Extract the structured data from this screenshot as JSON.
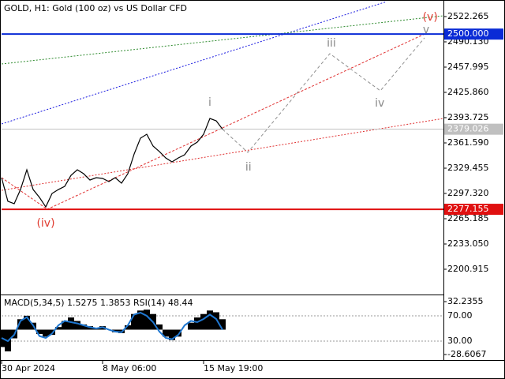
{
  "chart_data": [
    {
      "type": "line",
      "title": "GOLD, H1:  Gold (100 oz) vs US Dollar CFD",
      "categories": [
        "30 Apr 2024",
        null,
        null,
        null,
        null,
        null,
        null,
        null,
        null,
        null,
        null,
        null,
        null,
        null,
        null,
        null,
        "8 May 06:00",
        null,
        null,
        null,
        null,
        null,
        null,
        null,
        null,
        null,
        null,
        null,
        null,
        null,
        null,
        null,
        "15 May 19:00",
        null,
        null,
        null
      ],
      "values": [
        2317.4,
        2287.3,
        2284.3,
        2302.3,
        2327.4,
        2302.3,
        2292.3,
        2280.2,
        2297.3,
        2302.3,
        2306.3,
        2320.4,
        2327.4,
        2322.4,
        2314.4,
        2317.4,
        2316.4,
        2312.4,
        2317.4,
        2310.4,
        2322.4,
        2347.5,
        2367.6,
        2372.6,
        2357.6,
        2350.6,
        2342.5,
        2337.5,
        2342.5,
        2346.5,
        2357.6,
        2362.6,
        2372.6,
        2392.7,
        2389.7,
        2379.0
      ],
      "color": "#000000",
      "xlim": [
        0,
        70
      ],
      "ylim": [
        2169.78,
        2541.35
      ],
      "yticks": [
        2522.265,
        {
          "value": 2490.13,
          "label": "2490.130"
        },
        2457.995,
        {
          "value": 2425.86,
          "label": "2425.860"
        },
        2393.725,
        {
          "value": 2361.59,
          "label": "2361.590"
        },
        2329.455,
        {
          "value": 2297.32,
          "label": "2297.320"
        },
        2265.185,
        {
          "value": 2233.05,
          "label": "2233.050"
        },
        2200.915
      ],
      "levels": [
        {
          "value": {
            "value": 2500,
            "label": "2500.000"
          },
          "color": "#0a2bd6",
          "label_color": "#0a2bd6"
        },
        {
          "value": 2379.026,
          "color": "#c0c0c0",
          "label_color": "#c0c0c0"
        },
        {
          "value": 2277.155,
          "color": "#e01010",
          "label_color": "#e01010"
        }
      ],
      "lines": [
        {
          "color": "#1a1ae0",
          "dash": "2 2",
          "x": [
            0,
            61
          ],
          "values": [
            2385.7,
            2541.35
          ]
        },
        {
          "color": "#2e8b2e",
          "dash": "2 2",
          "x": [
            0,
            70
          ],
          "values": [
            2462.0,
            2523.3
          ]
        },
        {
          "color": "#e03030",
          "dash": "3 2",
          "x": [
            0,
            7.25,
            67.25
          ],
          "values": [
            2317.4,
            2277.2,
            2501.0
          ]
        },
        {
          "color": "#e03030",
          "dash": "2 2",
          "x": [
            0,
            70
          ],
          "values": [
            2301.3,
            2392.7
          ]
        },
        {
          "color": "#909090",
          "dash": "4 3",
          "x": [
            35,
            39,
            52,
            60,
            67
          ],
          "values": [
            2379.0,
            2349.5,
            2475.1,
            2427.9,
            2495.2
          ]
        }
      ],
      "annotations": [
        {
          "text": "(v)",
          "color": "#e03c31",
          "x": 67.9,
          "y": 2521.3
        },
        {
          "text": "v",
          "color": "#888888",
          "x": 67.25,
          "y": 2505.2
        },
        {
          "text": "iii",
          "color": "#888888",
          "x": 52.25,
          "y": 2488.1
        },
        {
          "text": "iv",
          "color": "#888888",
          "x": 59.9,
          "y": 2411.8
        },
        {
          "text": "ii",
          "color": "#888888",
          "x": 39.1,
          "y": 2330.5
        },
        {
          "text": "i",
          "color": "#888888",
          "x": 33,
          "y": 2412.8
        },
        {
          "text": "(iv)",
          "color": "#e03c31",
          "x": 7,
          "y": 2259.2
        }
      ]
    },
    {
      "type": "bar",
      "title": "MACD(5,34,5) 1.5275 1.3853 RSI(14) 48.44",
      "ylim": [
        -34.05,
        38.6
      ],
      "yticks": [
        32.2355,
        -28.6067
      ],
      "y2lim": [
        1.25,
        101.25
      ],
      "y2ticks": [
        {
          "value": 70,
          "label": "70.00"
        },
        {
          "value": 30,
          "label": "30.00"
        }
      ],
      "series": [
        {
          "color": "#000000",
          "values": [
            -20,
            -25,
            -10,
            12,
            16,
            8,
            -5,
            -8,
            -6,
            3,
            10,
            14,
            10,
            6,
            4,
            2,
            4,
            0,
            -3,
            -4,
            5,
            18,
            22,
            23,
            18,
            6,
            -8,
            -12,
            -8,
            0,
            8,
            14,
            18,
            22,
            20,
            12
          ]
        },
        {
          "color": "#1f77d0",
          "axis": "y2",
          "values": [
            35,
            30,
            40,
            62,
            68,
            55,
            38,
            35,
            42,
            55,
            62,
            60,
            58,
            55,
            52,
            50,
            52,
            48,
            45,
            44,
            55,
            72,
            75,
            70,
            60,
            45,
            35,
            33,
            40,
            55,
            62,
            60,
            65,
            72,
            65,
            48
          ]
        }
      ]
    }
  ]
}
